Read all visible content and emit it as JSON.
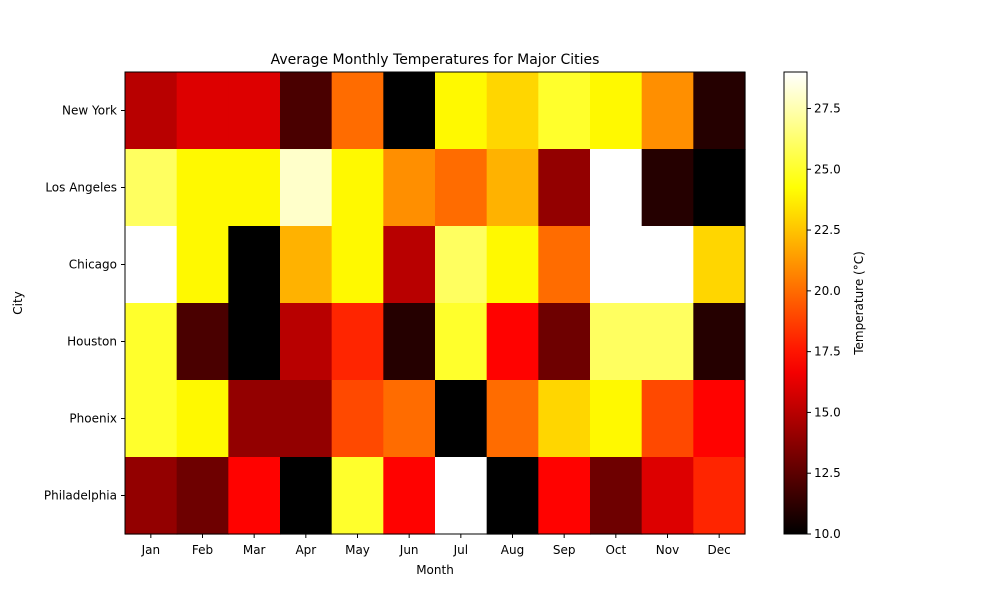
{
  "chart_data": {
    "type": "heatmap",
    "title": "Average Monthly Temperatures for Major Cities",
    "xlabel": "Month",
    "ylabel": "City",
    "colorbar_label": "Temperature (°C)",
    "colormap": "hot",
    "vmin": 10.0,
    "vmax": 29.0,
    "colorbar_ticks": [
      "10.0",
      "12.5",
      "15.0",
      "17.5",
      "20.0",
      "22.5",
      "25.0",
      "27.5"
    ],
    "columns": [
      "Jan",
      "Feb",
      "Mar",
      "Apr",
      "May",
      "Jun",
      "Jul",
      "Aug",
      "Sep",
      "Oct",
      "Nov",
      "Dec"
    ],
    "rows": [
      "New York",
      "Los Angeles",
      "Chicago",
      "Houston",
      "Phoenix",
      "Philadelphia"
    ],
    "values": [
      [
        15,
        16,
        16,
        12,
        20,
        10,
        24,
        23,
        25,
        24,
        21,
        11
      ],
      [
        26,
        24,
        24,
        28,
        24,
        21,
        20,
        22,
        14,
        29,
        11,
        10
      ],
      [
        29,
        24,
        10,
        22,
        24,
        15,
        26,
        24,
        20,
        29,
        29,
        23
      ],
      [
        25,
        12,
        10,
        15,
        18,
        11,
        25,
        17,
        13,
        26,
        26,
        11
      ],
      [
        25,
        24,
        14,
        14,
        19,
        20,
        10,
        20,
        23,
        24,
        19,
        17
      ],
      [
        14,
        13,
        17,
        10,
        25,
        17,
        29,
        10,
        17,
        13,
        16,
        18
      ]
    ]
  }
}
